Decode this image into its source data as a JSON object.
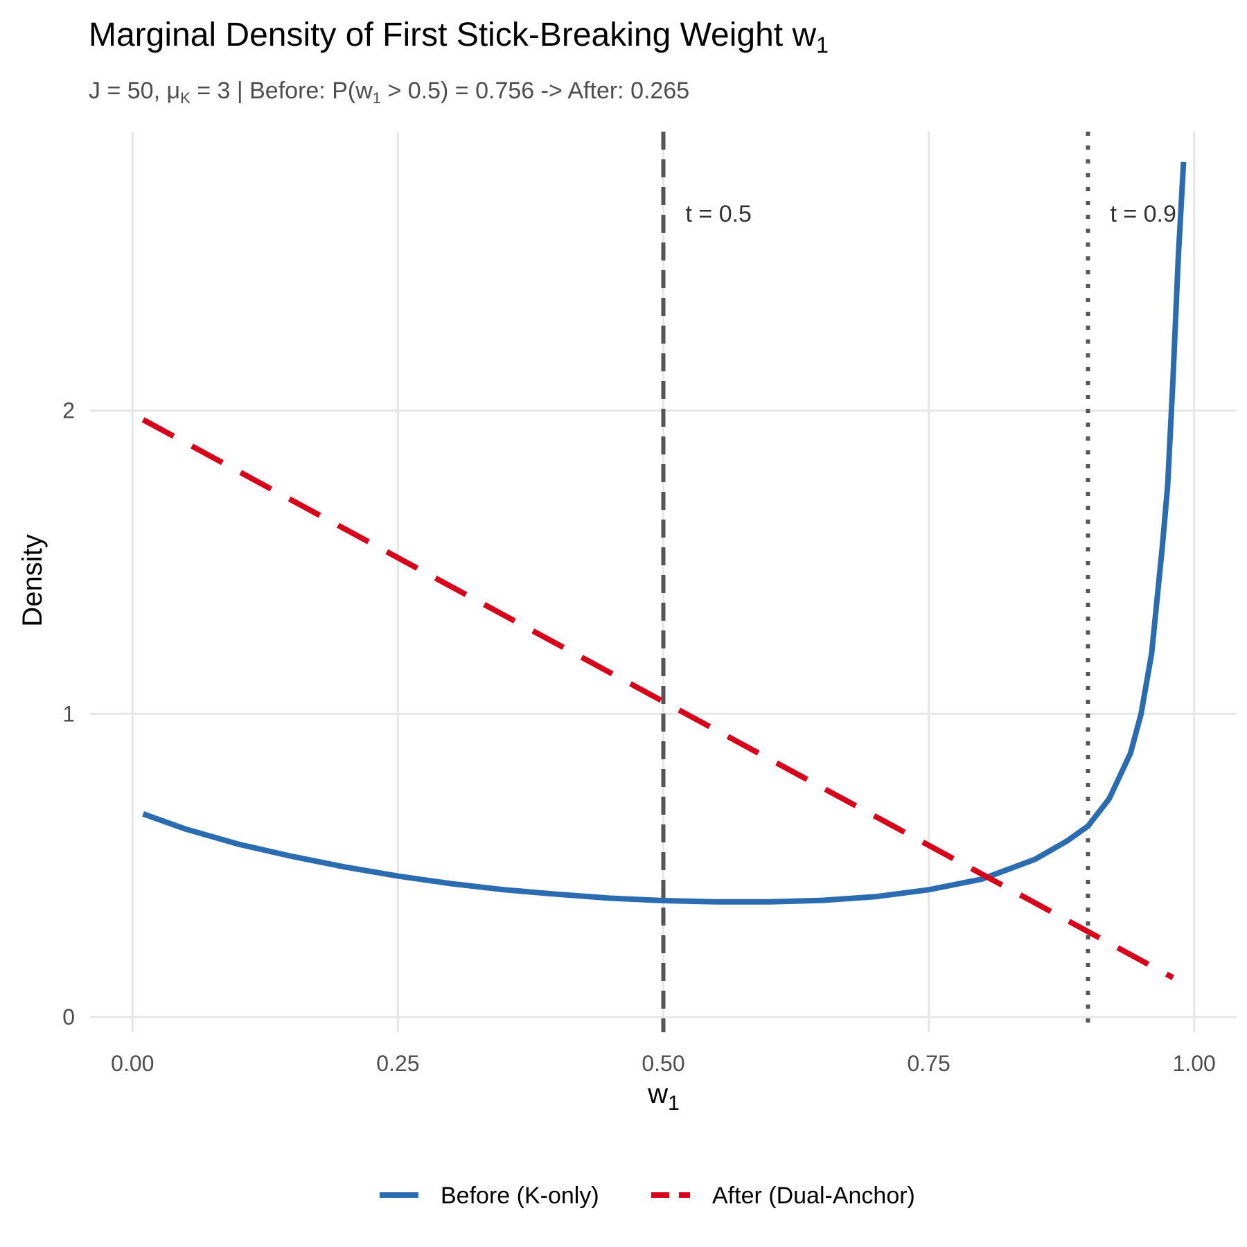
{
  "chart_data": {
    "type": "line",
    "title": "Marginal Density of First Stick-Breaking Weight w",
    "title_subscript": "1",
    "subtitle_parts": {
      "p1": "J = 50, μ",
      "p1_sub": "K",
      "p2": " = 3 | Before: P(w",
      "p2_sub": "1",
      "p3": " > 0.5) = 0.756 -> After: 0.265"
    },
    "xlabel": "w",
    "xlabel_subscript": "1",
    "ylabel": "Density",
    "xlim": [
      -0.04,
      1.04
    ],
    "ylim": [
      -0.05,
      2.92
    ],
    "x_ticks": [
      0,
      0.25,
      0.5,
      0.75,
      1.0
    ],
    "x_tick_labels": [
      "0.00",
      "0.25",
      "0.50",
      "0.75",
      "1.00"
    ],
    "y_ticks": [
      0,
      1,
      2
    ],
    "y_tick_labels": [
      "0",
      "1",
      "2"
    ],
    "grid": true,
    "legend_position": "bottom",
    "series": [
      {
        "name": "Before (K-only)",
        "color": "#2b6cb0",
        "style": "solid",
        "x": [
          0.01,
          0.05,
          0.1,
          0.15,
          0.2,
          0.25,
          0.3,
          0.35,
          0.4,
          0.45,
          0.5,
          0.55,
          0.6,
          0.65,
          0.7,
          0.75,
          0.8,
          0.85,
          0.88,
          0.9,
          0.92,
          0.94,
          0.95,
          0.96,
          0.97,
          0.975,
          0.98,
          0.985,
          0.99
        ],
        "values": [
          0.67,
          0.62,
          0.57,
          0.53,
          0.495,
          0.465,
          0.44,
          0.42,
          0.405,
          0.392,
          0.384,
          0.38,
          0.38,
          0.385,
          0.397,
          0.42,
          0.455,
          0.52,
          0.58,
          0.63,
          0.72,
          0.87,
          1.0,
          1.2,
          1.55,
          1.75,
          2.1,
          2.5,
          2.82
        ]
      },
      {
        "name": "After (Dual-Anchor)",
        "color": "#d7001a",
        "style": "dashed",
        "x": [
          0.01,
          0.98
        ],
        "values": [
          1.97,
          0.13
        ]
      }
    ],
    "reference_lines": [
      {
        "x": 0.5,
        "label": "t = 0.5",
        "style": "dashed",
        "color": "#555555"
      },
      {
        "x": 0.9,
        "label": "t = 0.9",
        "style": "dotted",
        "color": "#555555"
      }
    ]
  }
}
